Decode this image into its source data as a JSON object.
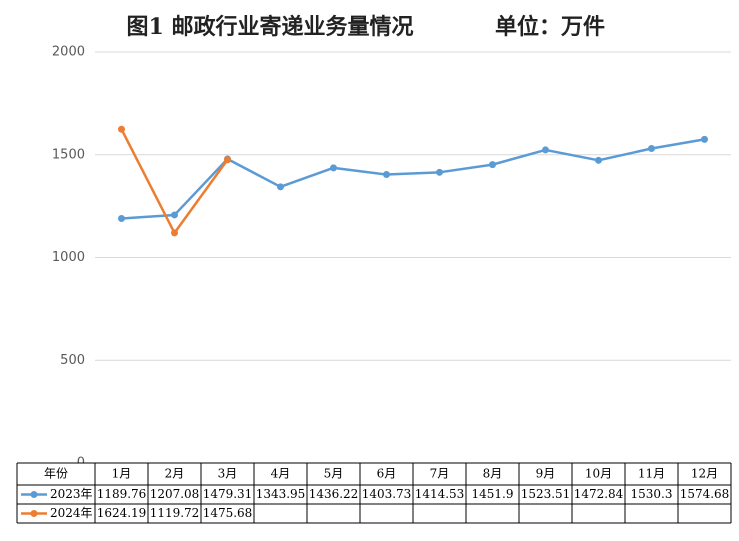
{
  "chart_data": {
    "type": "line",
    "title": "图1 邮政行业寄递业务量情况",
    "subtitle": "单位：万件",
    "table_header": "年份",
    "categories": [
      "1月",
      "2月",
      "3月",
      "4月",
      "5月",
      "6月",
      "7月",
      "8月",
      "9月",
      "10月",
      "11月",
      "12月"
    ],
    "series": [
      {
        "name": "2023年",
        "color": "#5b9bd5",
        "values": [
          1189.76,
          1207.08,
          1479.31,
          1343.95,
          1436.22,
          1403.73,
          1414.53,
          1451.9,
          1523.51,
          1472.84,
          1530.3,
          1574.68
        ]
      },
      {
        "name": "2024年",
        "color": "#ed7d31",
        "values": [
          1624.19,
          1119.72,
          1475.68,
          null,
          null,
          null,
          null,
          null,
          null,
          null,
          null,
          null
        ]
      }
    ],
    "ylim": [
      0,
      2000
    ],
    "yticks": [
      0,
      500,
      1000,
      1500,
      2000
    ],
    "grid": true
  }
}
